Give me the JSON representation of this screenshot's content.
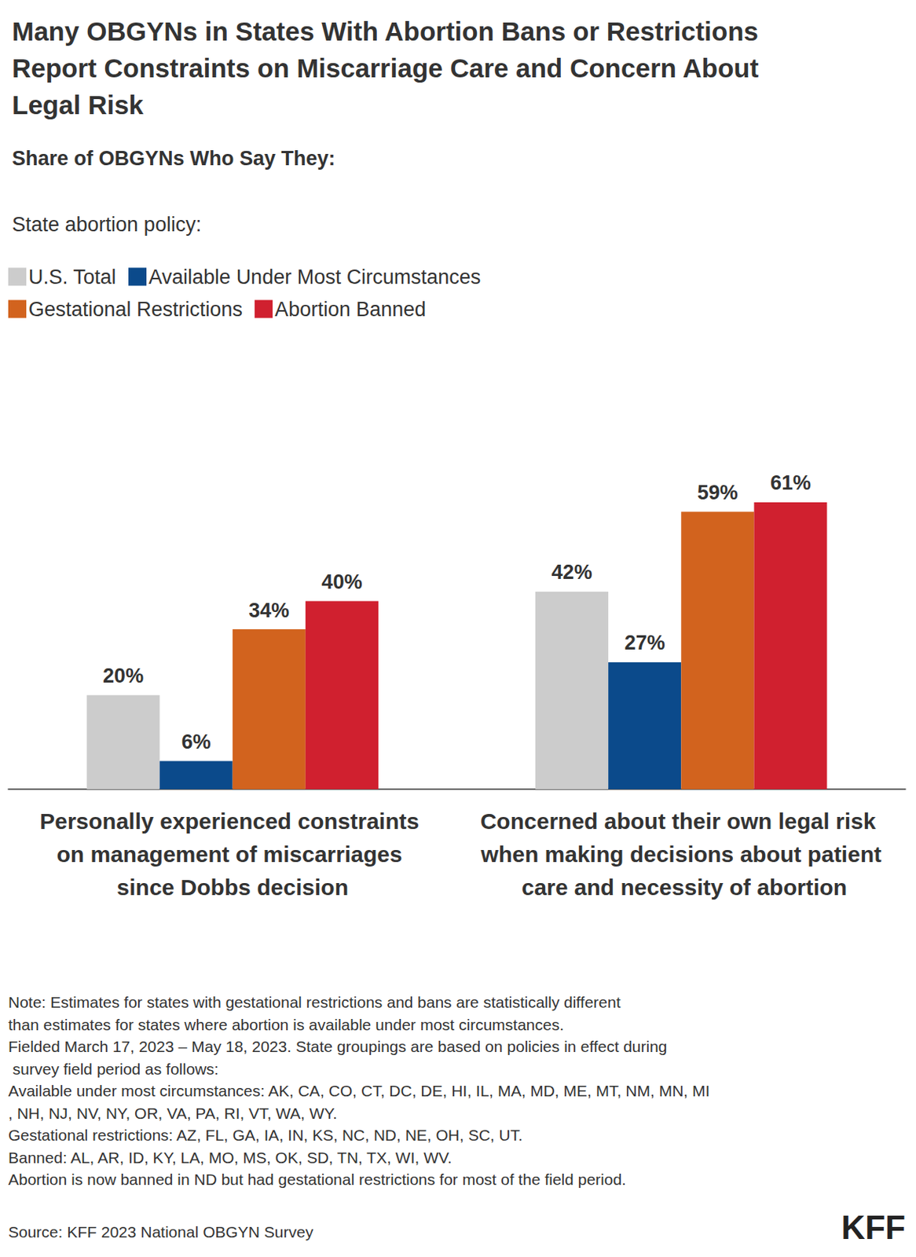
{
  "chart_data": {
    "type": "bar",
    "title": "Many OBGYNs in States With Abortion Bans or Restrictions Report Constraints on Miscarriage Care and Concern About Legal Risk",
    "subtitle": "Share of OBGYNs Who Say They:",
    "legend_title": "State abortion policy:",
    "categories": [
      "Personally experienced constraints on management of miscarriages since Dobbs decision",
      "Concerned about their own legal risk when making decisions about patient care and necessity of abortion"
    ],
    "series": [
      {
        "name": "U.S. Total",
        "color": "#cccccc",
        "values": [
          20,
          42
        ],
        "value_labels": [
          "20%",
          "42%"
        ]
      },
      {
        "name": "Available Under Most Circumstances",
        "color": "#0b4a8b",
        "values": [
          6,
          27
        ],
        "value_labels": [
          "6%",
          "27%"
        ]
      },
      {
        "name": "Gestational Restrictions",
        "color": "#d2631e",
        "values": [
          34,
          59
        ],
        "value_labels": [
          "34%",
          "59%"
        ]
      },
      {
        "name": "Abortion Banned",
        "color": "#d0202f",
        "values": [
          40,
          61
        ],
        "value_labels": [
          "40%",
          "61%"
        ]
      }
    ],
    "ylim": [
      0,
      95
    ],
    "grid": false,
    "tick_labels": false,
    "data_labels": true,
    "legend": "top-left",
    "notes": [
      "Note: Estimates for states with gestational restrictions and bans are statistically different than estimates for states where abortion is available under most circumstances.",
      "Fielded March 17, 2023 – May 18, 2023. State groupings are based on policies in effect during survey field period as follows:",
      "Available under most circumstances: AK, CA, CO, CT, DC, DE, HI, IL, MA, MD, ME, MT, NM, MN, MI, NH, NJ, NV, NY, OR, VA, PA, RI, VT, WA, WY.",
      "Gestational restrictions: AZ, FL, GA, IA, IN, KS, NC, ND, NE, OH, SC, UT.",
      "Banned: AL, AR, ID, KY, LA, MO, MS, OK, SD, TN, TX, WI, WV.",
      "Abortion is now banned in ND but had gestational restrictions for most of the field period."
    ],
    "source": "Source: KFF 2023 National OBGYN Survey",
    "logo": "KFF"
  }
}
